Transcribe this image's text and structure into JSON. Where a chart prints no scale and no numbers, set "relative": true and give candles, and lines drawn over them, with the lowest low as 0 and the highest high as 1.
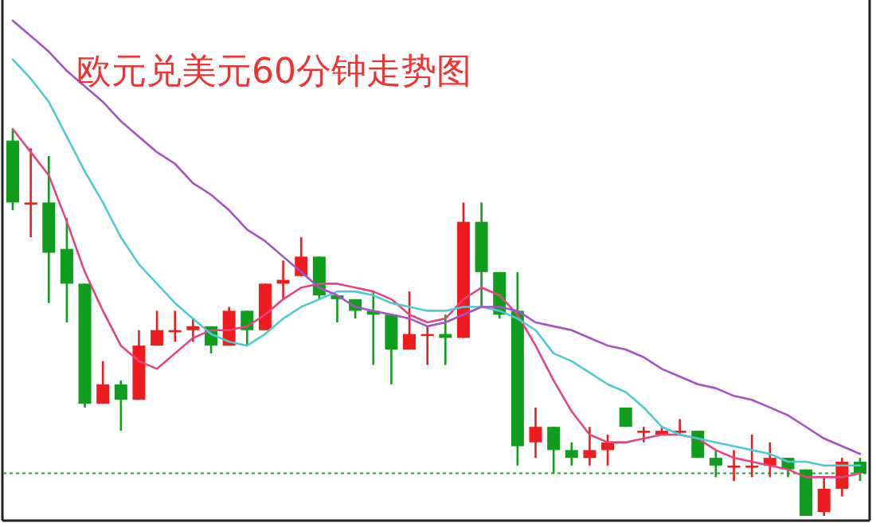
{
  "chart_data": {
    "type": "candlestick",
    "title": "欧元兑美元60分钟走势图",
    "relative": true,
    "categories": [
      null,
      null,
      null,
      null,
      null,
      null,
      null,
      null,
      null,
      null,
      null,
      null,
      null,
      null,
      null,
      null,
      null,
      null,
      null,
      null,
      null,
      null,
      null,
      null,
      null,
      null,
      null,
      null,
      null,
      null,
      null,
      null,
      null,
      null,
      null,
      null,
      null,
      null,
      null,
      null,
      null,
      null,
      null,
      null,
      null,
      null,
      null,
      null
    ],
    "ohlc": [
      [
        0.97,
        1.0,
        0.79,
        0.81
      ],
      [
        0.81,
        0.95,
        0.72,
        0.81
      ],
      [
        0.81,
        0.93,
        0.55,
        0.68
      ],
      [
        0.69,
        0.77,
        0.5,
        0.6
      ],
      [
        0.6,
        0.6,
        0.28,
        0.29
      ],
      [
        0.29,
        0.4,
        0.29,
        0.34
      ],
      [
        0.34,
        0.35,
        0.22,
        0.3
      ],
      [
        0.3,
        0.48,
        0.3,
        0.44
      ],
      [
        0.44,
        0.53,
        0.44,
        0.48
      ],
      [
        0.48,
        0.53,
        0.45,
        0.48
      ],
      [
        0.48,
        0.51,
        0.45,
        0.49
      ],
      [
        0.49,
        0.49,
        0.42,
        0.44
      ],
      [
        0.44,
        0.54,
        0.44,
        0.53
      ],
      [
        0.53,
        0.53,
        0.44,
        0.48
      ],
      [
        0.48,
        0.6,
        0.48,
        0.6
      ],
      [
        0.6,
        0.66,
        0.56,
        0.61
      ],
      [
        0.62,
        0.72,
        0.62,
        0.67
      ],
      [
        0.67,
        0.67,
        0.56,
        0.57
      ],
      [
        0.57,
        0.57,
        0.5,
        0.56
      ],
      [
        0.56,
        0.56,
        0.51,
        0.53
      ],
      [
        0.53,
        0.58,
        0.39,
        0.52
      ],
      [
        0.52,
        0.52,
        0.34,
        0.43
      ],
      [
        0.43,
        0.58,
        0.43,
        0.47
      ],
      [
        0.47,
        0.49,
        0.39,
        0.47
      ],
      [
        0.47,
        0.52,
        0.39,
        0.46
      ],
      [
        0.46,
        0.81,
        0.46,
        0.76
      ],
      [
        0.76,
        0.81,
        0.54,
        0.63
      ],
      [
        0.63,
        0.63,
        0.51,
        0.52
      ],
      [
        0.53,
        0.63,
        0.13,
        0.18
      ],
      [
        0.19,
        0.28,
        0.15,
        0.23
      ],
      [
        0.23,
        0.23,
        0.11,
        0.17
      ],
      [
        0.17,
        0.19,
        0.13,
        0.15
      ],
      [
        0.15,
        0.23,
        0.13,
        0.17
      ],
      [
        0.17,
        0.21,
        0.13,
        0.19
      ],
      [
        0.28,
        0.28,
        0.23,
        0.23
      ],
      [
        0.22,
        0.23,
        0.19,
        0.22
      ],
      [
        0.21,
        0.23,
        0.21,
        0.22
      ],
      [
        0.22,
        0.25,
        0.21,
        0.22
      ],
      [
        0.22,
        0.22,
        0.15,
        0.15
      ],
      [
        0.15,
        0.17,
        0.1,
        0.13
      ],
      [
        0.13,
        0.17,
        0.09,
        0.13
      ],
      [
        0.13,
        0.21,
        0.1,
        0.13
      ],
      [
        0.13,
        0.19,
        0.1,
        0.15
      ],
      [
        0.15,
        0.15,
        0.1,
        0.12
      ],
      [
        0.12,
        0.12,
        0.0,
        0.0
      ],
      [
        0.01,
        0.1,
        0.0,
        0.07
      ],
      [
        0.07,
        0.15,
        0.05,
        0.14
      ],
      [
        0.14,
        0.15,
        0.09,
        0.11
      ]
    ],
    "colors": [
      "#0f9d1e",
      "#ee1c1c",
      "#0f9d1e",
      "#0f9d1e",
      "#0f9d1e",
      "#ee1c1c",
      "#0f9d1e",
      "#ee1c1c",
      "#ee1c1c",
      "#ee1c1c",
      "#ee1c1c",
      "#0f9d1e",
      "#ee1c1c",
      "#0f9d1e",
      "#ee1c1c",
      "#ee1c1c",
      "#ee1c1c",
      "#0f9d1e",
      "#0f9d1e",
      "#0f9d1e",
      "#0f9d1e",
      "#0f9d1e",
      "#ee1c1c",
      "#ee1c1c",
      "#0f9d1e",
      "#ee1c1c",
      "#0f9d1e",
      "#0f9d1e",
      "#0f9d1e",
      "#ee1c1c",
      "#0f9d1e",
      "#0f9d1e",
      "#ee1c1c",
      "#ee1c1c",
      "#0f9d1e",
      "#ee1c1c",
      "#ee1c1c",
      "#ee1c1c",
      "#0f9d1e",
      "#0f9d1e",
      "#ee1c1c",
      "#ee1c1c",
      "#ee1c1c",
      "#0f9d1e",
      "#0f9d1e",
      "#ee1c1c",
      "#ee1c1c",
      "#0f9d1e"
    ],
    "series": [
      {
        "type": "line",
        "color": "#e5457f",
        "values": [
          1.0,
          0.94,
          0.88,
          0.76,
          0.63,
          0.53,
          0.44,
          0.4,
          0.38,
          0.42,
          0.46,
          0.48,
          0.48,
          0.49,
          0.52,
          0.56,
          0.59,
          0.6,
          0.6,
          0.59,
          0.58,
          0.56,
          0.52,
          0.5,
          0.51,
          0.56,
          0.59,
          0.57,
          0.52,
          0.44,
          0.35,
          0.27,
          0.21,
          0.19,
          0.19,
          0.2,
          0.21,
          0.21,
          0.2,
          0.17,
          0.15,
          0.14,
          0.13,
          0.12,
          0.1,
          0.1,
          0.1,
          0.11
        ]
      },
      {
        "type": "line",
        "color": "#4fc9d3",
        "values": [
          1.18,
          1.13,
          1.07,
          0.98,
          0.89,
          0.81,
          0.72,
          0.65,
          0.6,
          0.55,
          0.51,
          0.47,
          0.45,
          0.44,
          0.47,
          0.51,
          0.54,
          0.56,
          0.58,
          0.58,
          0.57,
          0.55,
          0.54,
          0.53,
          0.53,
          0.54,
          0.54,
          0.53,
          0.51,
          0.48,
          0.42,
          0.4,
          0.37,
          0.34,
          0.32,
          0.28,
          0.23,
          0.21,
          0.2,
          0.19,
          0.18,
          0.17,
          0.16,
          0.14,
          0.14,
          0.13,
          0.13,
          0.13
        ]
      },
      {
        "type": "line",
        "color": "#a552c4",
        "values": [
          1.28,
          1.24,
          1.2,
          1.15,
          1.11,
          1.07,
          1.02,
          0.98,
          0.94,
          0.91,
          0.86,
          0.83,
          0.79,
          0.74,
          0.71,
          0.67,
          0.63,
          0.59,
          0.57,
          0.54,
          0.53,
          0.52,
          0.51,
          0.49,
          0.5,
          0.52,
          0.54,
          0.54,
          0.53,
          0.5,
          0.49,
          0.48,
          0.46,
          0.44,
          0.43,
          0.41,
          0.38,
          0.36,
          0.34,
          0.33,
          0.31,
          0.3,
          0.28,
          0.26,
          0.23,
          0.2,
          0.18,
          0.16
        ]
      }
    ],
    "ref_lines": [
      {
        "axis": "y",
        "value": 0.11,
        "color": "#22aa22",
        "line_style": "dotted"
      }
    ]
  }
}
